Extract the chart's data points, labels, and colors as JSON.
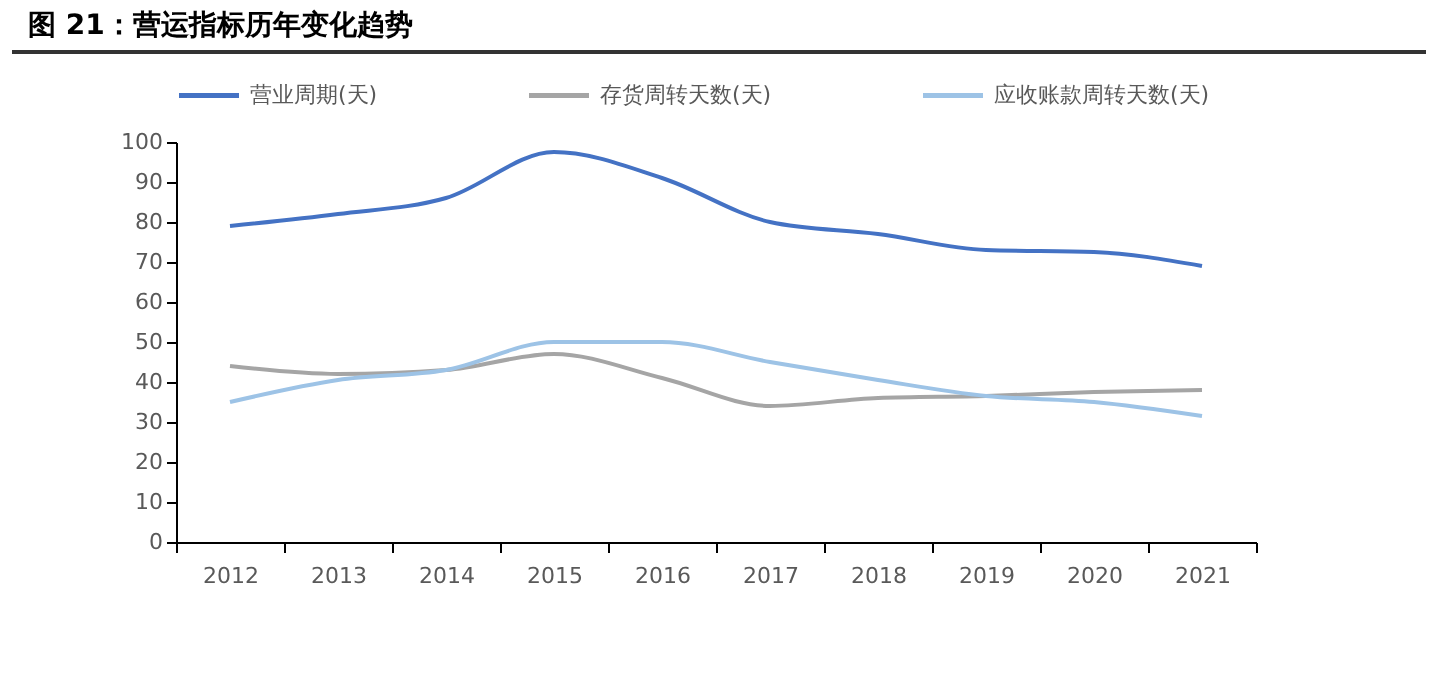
{
  "chart_data": {
    "type": "line",
    "title": "图 21：营运指标历年变化趋势",
    "categories": [
      "2012",
      "2013",
      "2014",
      "2015",
      "2016",
      "2017",
      "2018",
      "2019",
      "2020",
      "2021"
    ],
    "series": [
      {
        "name": "营业周期(天)",
        "color": "#4472c4",
        "values": [
          79,
          82,
          86,
          97.5,
          91,
          80,
          77,
          73,
          72.5,
          69
        ]
      },
      {
        "name": "存货周转天数(天)",
        "color": "#a5a5a5",
        "values": [
          44,
          42,
          43,
          47,
          41,
          34,
          36,
          36.5,
          37.5,
          38
        ]
      },
      {
        "name": "应收账款周转天数(天)",
        "color": "#9dc3e6",
        "values": [
          35,
          40.5,
          43,
          50,
          50,
          45,
          40.5,
          36.5,
          35,
          31.5
        ]
      }
    ],
    "ylim": [
      0,
      100
    ],
    "yticks": [
      0,
      10,
      20,
      30,
      40,
      50,
      60,
      70,
      80,
      90,
      100
    ],
    "grid": false,
    "legend": "top",
    "marker": "none",
    "line_style": "solid"
  }
}
